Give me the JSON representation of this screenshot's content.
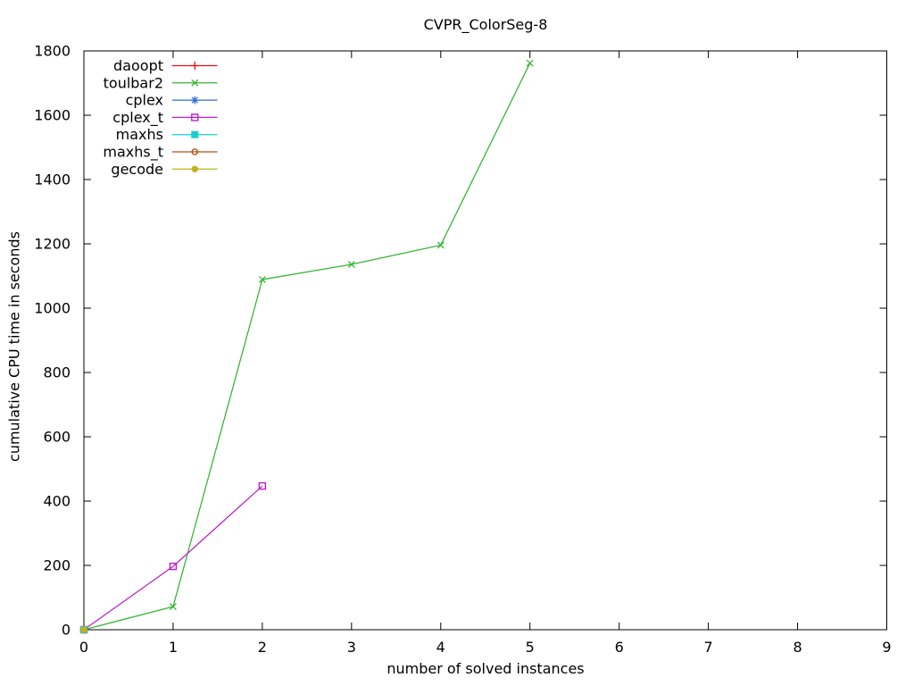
{
  "window": {
    "background": "#ffffff"
  },
  "chart_data": {
    "type": "line",
    "title": "CVPR_ColorSeg-8",
    "xlabel": "number of solved instances",
    "ylabel": "cumulative CPU time in seconds",
    "xlim": [
      0,
      9
    ],
    "ylim": [
      0,
      1800
    ],
    "xticks": [
      0,
      1,
      2,
      3,
      4,
      5,
      6,
      7,
      8,
      9
    ],
    "yticks": [
      0,
      200,
      400,
      600,
      800,
      1000,
      1200,
      1400,
      1600,
      1800
    ],
    "grid": false,
    "axis_color": "#000000",
    "legend_position": "top-left-inside",
    "series": [
      {
        "name": "daoopt",
        "color": "#e01218",
        "marker": "plus",
        "points": [
          [
            0,
            0
          ]
        ]
      },
      {
        "name": "toulbar2",
        "color": "#32b432",
        "marker": "cross",
        "points": [
          [
            0,
            0
          ],
          [
            1,
            72
          ],
          [
            2,
            1089
          ],
          [
            3,
            1136
          ],
          [
            4,
            1196
          ],
          [
            5,
            1762
          ]
        ]
      },
      {
        "name": "cplex",
        "color": "#2f6bdb",
        "marker": "asterisk",
        "points": [
          [
            0,
            0
          ]
        ]
      },
      {
        "name": "cplex_t",
        "color": "#bd1ecd",
        "marker": "open-square",
        "points": [
          [
            0,
            0
          ],
          [
            1,
            197
          ],
          [
            2,
            447
          ]
        ]
      },
      {
        "name": "maxhs",
        "color": "#17cfcf",
        "marker": "filled-square",
        "points": [
          [
            0,
            0
          ]
        ]
      },
      {
        "name": "maxhs_t",
        "color": "#ad5013",
        "marker": "open-circle",
        "points": [
          [
            0,
            0
          ]
        ]
      },
      {
        "name": "gecode",
        "color": "#c2b219",
        "marker": "filled-circle",
        "points": [
          [
            0,
            0
          ]
        ]
      }
    ]
  }
}
